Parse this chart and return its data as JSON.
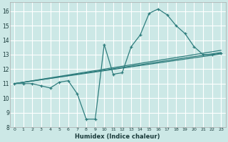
{
  "xlabel": "Humidex (Indice chaleur)",
  "bg_color": "#cce8e6",
  "grid_color": "#ffffff",
  "line_color": "#2e7d7d",
  "xlim": [
    -0.5,
    23.5
  ],
  "ylim": [
    8,
    16.6
  ],
  "xticks": [
    0,
    1,
    2,
    3,
    4,
    5,
    6,
    7,
    8,
    9,
    10,
    11,
    12,
    13,
    14,
    15,
    16,
    17,
    18,
    19,
    20,
    21,
    22,
    23
  ],
  "yticks": [
    8,
    9,
    10,
    11,
    12,
    13,
    14,
    15,
    16
  ],
  "main_line": {
    "x": [
      0,
      1,
      2,
      3,
      4,
      5,
      6,
      7,
      8,
      9,
      10,
      11,
      12,
      13,
      14,
      15,
      16,
      17,
      18,
      19,
      20,
      21,
      22,
      23
    ],
    "y": [
      11.0,
      11.0,
      11.0,
      10.85,
      10.7,
      11.1,
      11.2,
      10.3,
      8.55,
      8.55,
      13.7,
      11.65,
      11.75,
      13.55,
      14.35,
      15.85,
      16.15,
      15.75,
      15.0,
      14.45,
      13.55,
      13.0,
      13.0,
      13.1
    ]
  },
  "reg_lines": [
    {
      "x": [
        0,
        23
      ],
      "y": [
        11.0,
        13.05
      ]
    },
    {
      "x": [
        0,
        23
      ],
      "y": [
        11.0,
        13.15
      ]
    },
    {
      "x": [
        0,
        23
      ],
      "y": [
        11.0,
        13.3
      ]
    }
  ]
}
